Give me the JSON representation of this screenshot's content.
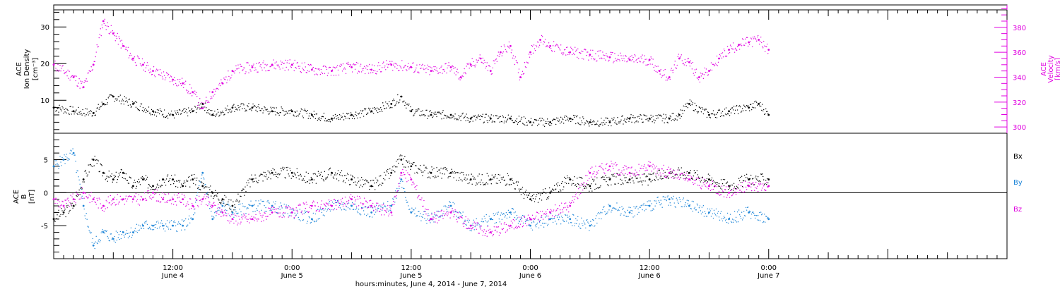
{
  "colors": {
    "axis": "#000000",
    "density": "#000000",
    "velocity": "#e000e0",
    "bx": "#000000",
    "by": "#1f86d8",
    "bz": "#e000e0"
  },
  "x_axis": {
    "title": "hours:minutes, June  4, 2014 - June  7, 2014",
    "range_hours": [
      0,
      96
    ],
    "ticks": [
      {
        "hour": 12,
        "time": "12:00",
        "date": "June 4"
      },
      {
        "hour": 24,
        "time": "0:00",
        "date": "June 5"
      },
      {
        "hour": 36,
        "time": "12:00",
        "date": "June 5"
      },
      {
        "hour": 48,
        "time": "0:00",
        "date": "June 6"
      },
      {
        "hour": 60,
        "time": "12:00",
        "date": "June 6"
      },
      {
        "hour": 72,
        "time": "0:00",
        "date": "June 7"
      }
    ]
  },
  "chart_data": [
    {
      "type": "scatter",
      "ylabel_left": [
        "ACE",
        "Ion Density",
        "[cm⁻³]"
      ],
      "ylabel_right": [
        "ACE",
        "Velocity",
        "[km/s]"
      ],
      "ylim_left": [
        1,
        36
      ],
      "ylim_right": [
        295,
        398
      ],
      "yticks_left": [
        10,
        20,
        30
      ],
      "yticks_right": [
        300,
        320,
        340,
        360,
        380
      ],
      "series": [
        {
          "axis": "left",
          "x": [
            0,
            2,
            4,
            5,
            6,
            8,
            10,
            12,
            14,
            15,
            16,
            18,
            20,
            22,
            24,
            26,
            28,
            30,
            32,
            34,
            35,
            36,
            38,
            40,
            42,
            44,
            46,
            48,
            50,
            52,
            54,
            56,
            58,
            60,
            62,
            63,
            64,
            66,
            68,
            70,
            71,
            72
          ],
          "values": [
            8,
            7,
            6.5,
            9,
            11,
            9,
            7,
            6,
            7,
            9,
            6,
            8,
            8,
            7,
            7,
            6,
            5,
            6,
            7,
            9,
            11,
            7,
            6,
            6,
            5,
            5,
            5,
            4,
            4,
            5,
            4,
            4,
            5,
            5,
            5,
            6,
            9,
            6,
            7,
            8,
            9,
            6
          ]
        },
        {
          "axis": "right",
          "x": [
            0,
            2,
            3,
            4,
            5,
            6,
            7,
            8,
            9,
            10,
            12,
            13,
            14,
            15,
            16,
            17,
            18,
            20,
            22,
            24,
            26,
            28,
            30,
            32,
            34,
            36,
            38,
            40,
            41,
            42,
            43,
            44,
            45,
            46,
            47,
            48,
            49,
            50,
            52,
            54,
            56,
            58,
            60,
            61,
            62,
            63,
            64,
            65,
            66,
            67,
            68,
            69,
            70,
            71,
            72
          ],
          "values": [
            350,
            340,
            332,
            350,
            385,
            375,
            365,
            355,
            350,
            345,
            338,
            335,
            328,
            315,
            328,
            335,
            345,
            348,
            350,
            350,
            346,
            345,
            348,
            346,
            350,
            348,
            345,
            348,
            340,
            350,
            355,
            345,
            360,
            365,
            340,
            360,
            370,
            365,
            360,
            358,
            356,
            354,
            354,
            345,
            340,
            355,
            352,
            340,
            345,
            355,
            362,
            366,
            368,
            370,
            362
          ]
        }
      ]
    },
    {
      "type": "scatter",
      "ylabel": [
        "ACE",
        "B",
        "[nT]"
      ],
      "ylim": [
        -10,
        9
      ],
      "yticks": [
        -5,
        0,
        5
      ],
      "series": [
        {
          "name": "Bx",
          "x": [
            0,
            1,
            2,
            3,
            4,
            5,
            6,
            7,
            8,
            9,
            10,
            11,
            12,
            13,
            14,
            15,
            16,
            17,
            18,
            20,
            22,
            24,
            26,
            28,
            30,
            32,
            34,
            35,
            36,
            38,
            40,
            42,
            44,
            46,
            48,
            50,
            52,
            54,
            56,
            58,
            60,
            62,
            64,
            66,
            68,
            70,
            72
          ],
          "values": [
            -4,
            -3,
            -2,
            2,
            5,
            3,
            2,
            3,
            1,
            2,
            1,
            2,
            2,
            1,
            2,
            1,
            0,
            -1,
            -2,
            2,
            3,
            3,
            2,
            3,
            2,
            1,
            3,
            5,
            4,
            3,
            3,
            2,
            2,
            2,
            -1,
            0,
            2,
            1,
            2,
            2,
            2,
            3,
            3,
            2,
            1,
            2,
            2
          ]
        },
        {
          "name": "By",
          "x": [
            0,
            1,
            2,
            3,
            4,
            5,
            6,
            7,
            8,
            9,
            10,
            11,
            12,
            13,
            14,
            15,
            16,
            17,
            18,
            20,
            22,
            24,
            26,
            28,
            30,
            32,
            34,
            35,
            36,
            38,
            40,
            42,
            44,
            46,
            48,
            50,
            52,
            54,
            56,
            58,
            60,
            62,
            64,
            66,
            68,
            70,
            72
          ],
          "values": [
            4,
            5,
            6,
            -2,
            -8,
            -6,
            -7,
            -6,
            -6,
            -5,
            -5,
            -5,
            -5,
            -5,
            -4,
            3,
            -4,
            -2,
            -3,
            -2,
            -2,
            -3,
            -4,
            -2,
            -2,
            -3,
            -2,
            2,
            -3,
            -4,
            -2,
            -5,
            -4,
            -3,
            -5,
            -4,
            -4,
            -5,
            -2,
            -3,
            -2,
            -1,
            -2,
            -3,
            -4,
            -3,
            -4
          ]
        },
        {
          "name": "Bz",
          "x": [
            0,
            1,
            2,
            3,
            4,
            5,
            6,
            7,
            8,
            9,
            10,
            11,
            12,
            13,
            14,
            15,
            16,
            17,
            18,
            20,
            22,
            24,
            26,
            28,
            30,
            32,
            34,
            35,
            36,
            38,
            40,
            42,
            44,
            46,
            48,
            50,
            52,
            54,
            56,
            58,
            60,
            62,
            64,
            66,
            68,
            70,
            72
          ],
          "values": [
            -1,
            -2,
            -1,
            0,
            -1,
            -2,
            -1,
            -1,
            -1,
            -1,
            0,
            -1,
            -1,
            -1,
            -2,
            -1,
            -2,
            -3,
            -4,
            -4,
            -3,
            -3,
            -2,
            -2,
            -1,
            -2,
            -3,
            3,
            2,
            -4,
            -3,
            -5,
            -6,
            -5,
            -4,
            -3,
            -2,
            3,
            4,
            3,
            4,
            3,
            2,
            1,
            0,
            1,
            1
          ]
        }
      ]
    }
  ]
}
